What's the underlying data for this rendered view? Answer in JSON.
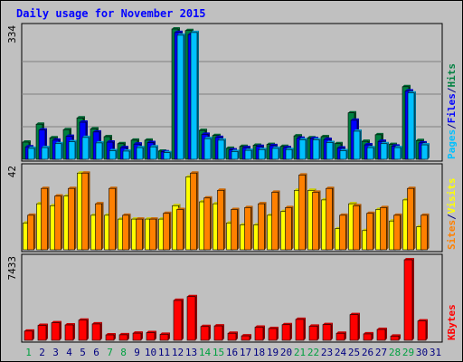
{
  "title": "Daily usage for November 2015",
  "colors": {
    "hits": "#008040",
    "files": "#0000ff",
    "pages": "#00c0ff",
    "visits": "#ffff00",
    "sites": "#ff8000",
    "kbytes": "#ff0000",
    "weekend_day": "#00a040",
    "weekday": "#000080",
    "panel_bg": "#c0c0c0"
  },
  "chart_data": {
    "type": "bar",
    "days": [
      "1",
      "2",
      "3",
      "4",
      "5",
      "6",
      "7",
      "8",
      "9",
      "10",
      "11",
      "12",
      "13",
      "14",
      "15",
      "16",
      "17",
      "18",
      "19",
      "20",
      "21",
      "22",
      "23",
      "24",
      "25",
      "26",
      "27",
      "28",
      "29",
      "30",
      "31"
    ],
    "weekend_days": [
      "1",
      "7",
      "8",
      "14",
      "15",
      "21",
      "22",
      "28",
      "29"
    ],
    "panels": [
      {
        "id": "top",
        "ymax_label": "334",
        "ymax": 334,
        "right_labels": [
          {
            "text": "Pages",
            "color": "#00c0ff"
          },
          {
            "text": "/",
            "color": "#000080"
          },
          {
            "text": "Files",
            "color": "#0000ff"
          },
          {
            "text": "/",
            "color": "#000080"
          },
          {
            "text": "Hits",
            "color": "#008040"
          }
        ],
        "series": [
          {
            "key": "hits",
            "values": [
              44,
              90,
              55,
              76,
              106,
              78,
              58,
              40,
              49,
              49,
              21,
              334,
              330,
              74,
              61,
              28,
              33,
              36,
              38,
              33,
              60,
              55,
              58,
              40,
              119,
              46,
              63,
              38,
              186,
              48,
              0
            ]
          },
          {
            "key": "files",
            "values": [
              32,
              75,
              49,
              59,
              95,
              70,
              44,
              30,
              39,
              43,
              19,
              325,
              320,
              64,
              56,
              24,
              30,
              33,
              35,
              30,
              54,
              53,
              51,
              29,
              100,
              37,
              46,
              34,
              175,
              42,
              0
            ]
          },
          {
            "key": "pages",
            "values": [
              28,
              30,
              40,
              45,
              56,
              42,
              22,
              21,
              30,
              32,
              17,
              318,
              325,
              53,
              49,
              20,
              23,
              25,
              28,
              25,
              50,
              50,
              43,
              22,
              72,
              30,
              40,
              30,
              170,
              37,
              0
            ]
          }
        ]
      },
      {
        "id": "mid",
        "ymax_label": "42",
        "ymax": 42,
        "right_labels": [
          {
            "text": "Sites",
            "color": "#ff8000"
          },
          {
            "text": "/",
            "color": "#000080"
          },
          {
            "text": "Visits",
            "color": "#ffff00"
          }
        ],
        "series": [
          {
            "key": "visits",
            "values": [
              14,
              24,
              23,
              28,
              40,
              18,
              18,
              16,
              16,
              16,
              16,
              23,
              38,
              25,
              24,
              14,
              13,
              13,
              18,
              20,
              31,
              31,
              26,
              11,
              24,
              10,
              21,
              15,
              26,
              12,
              0
            ]
          },
          {
            "key": "sites",
            "values": [
              18,
              32,
              28,
              32,
              40,
              24,
              32,
              18,
              16,
              16,
              19,
              21,
              40,
              27,
              31,
              21,
              22,
              24,
              30,
              22,
              39,
              30,
              32,
              18,
              23,
              19,
              22,
              18,
              32,
              18,
              0
            ]
          }
        ]
      },
      {
        "id": "bottom",
        "ymax_label": "7433",
        "ymax": 7433,
        "right_labels": [
          {
            "text": "KBytes",
            "color": "#ff0000"
          }
        ],
        "series": [
          {
            "key": "kbytes",
            "values": [
              850,
              1380,
              1620,
              1420,
              1860,
              1510,
              500,
              510,
              660,
              710,
              550,
              3680,
              4030,
              1270,
              1330,
              650,
              410,
              1210,
              1090,
              1440,
              1930,
              1300,
              1450,
              650,
              2370,
              590,
              1000,
              390,
              7433,
              1780,
              0
            ]
          }
        ]
      }
    ]
  }
}
